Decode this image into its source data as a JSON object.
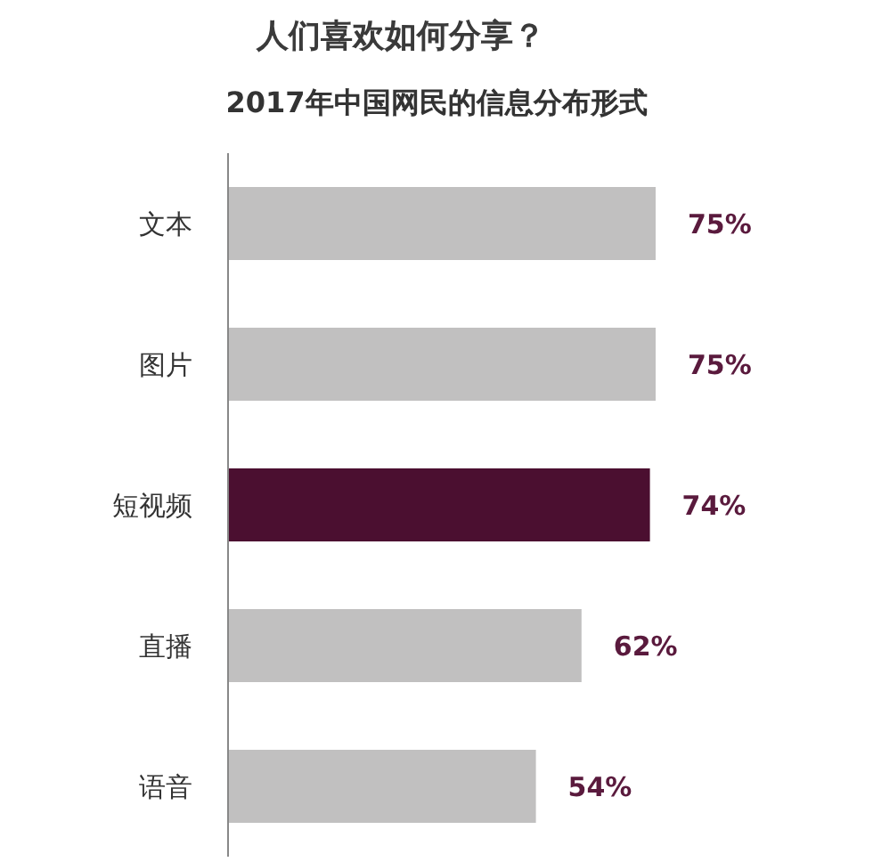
{
  "chart_data": {
    "type": "bar",
    "orientation": "horizontal",
    "title": "人们喜欢如何分享？",
    "subtitle": "2017年中国网民的信息分布形式",
    "categories": [
      "文本",
      "图片",
      "短视频",
      "直播",
      "语音"
    ],
    "values": [
      75,
      75,
      74,
      62,
      54
    ],
    "colors": [
      "#c1c0c0",
      "#c1c0c0",
      "#4b0f30",
      "#c1c0c0",
      "#c1c0c0"
    ],
    "value_labels": [
      "75%",
      "75%",
      "74%",
      "62%",
      "54%"
    ],
    "tick_labels": "y",
    "grid": false
  }
}
